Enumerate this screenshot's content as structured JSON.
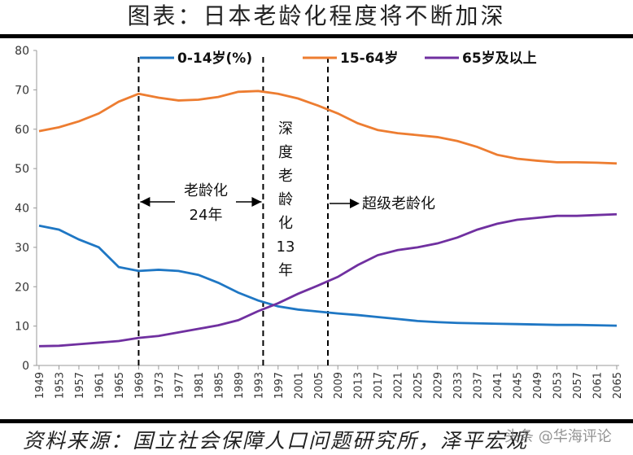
{
  "title": "图表：日本老龄化程度将不断加深",
  "source": "资料来源：国立社会保障人口问题研究所，泽平宏观",
  "watermark": "头条 @华海评论",
  "chart_data": {
    "type": "line",
    "ylim": [
      0,
      80
    ],
    "yticks": [
      0,
      10,
      20,
      30,
      40,
      50,
      60,
      70,
      80
    ],
    "xlim": [
      1949,
      2065
    ],
    "xticks": [
      1949,
      1953,
      1957,
      1961,
      1965,
      1969,
      1973,
      1977,
      1981,
      1985,
      1989,
      1993,
      1997,
      2001,
      2005,
      2009,
      2013,
      2017,
      2021,
      2025,
      2029,
      2033,
      2037,
      2041,
      2045,
      2049,
      2053,
      2057,
      2061,
      2065
    ],
    "x": [
      1949,
      1953,
      1957,
      1961,
      1965,
      1969,
      1973,
      1977,
      1981,
      1985,
      1989,
      1993,
      1997,
      2001,
      2005,
      2009,
      2013,
      2017,
      2021,
      2025,
      2029,
      2033,
      2037,
      2041,
      2045,
      2049,
      2053,
      2057,
      2061,
      2065
    ],
    "series": [
      {
        "name": "0-14岁(%)",
        "color": "#1f77c4",
        "values": [
          35.5,
          34.5,
          32,
          30,
          25,
          24,
          24.3,
          24,
          23,
          21,
          18.5,
          16.5,
          15,
          14.2,
          13.7,
          13.2,
          12.8,
          12.3,
          11.8,
          11.3,
          11,
          10.8,
          10.7,
          10.6,
          10.5,
          10.4,
          10.3,
          10.3,
          10.2,
          10.1
        ]
      },
      {
        "name": "15-64岁",
        "color": "#ed7d31",
        "values": [
          59.5,
          60.5,
          62,
          64,
          67,
          69,
          68,
          67.3,
          67.5,
          68.2,
          69.5,
          69.7,
          69,
          67.8,
          66,
          64,
          61.5,
          59.8,
          59,
          58.5,
          58,
          57,
          55.5,
          53.5,
          52.5,
          52,
          51.6,
          51.6,
          51.5,
          51.3
        ]
      },
      {
        "name": "65岁及以上",
        "color": "#7030a0",
        "values": [
          4.9,
          5,
          5.4,
          5.8,
          6.2,
          7,
          7.5,
          8.4,
          9.3,
          10.2,
          11.5,
          13.8,
          15.8,
          18.2,
          20.3,
          22.5,
          25.5,
          28,
          29.3,
          30,
          31,
          32.5,
          34.5,
          36,
          37,
          37.5,
          38,
          38,
          38.2,
          38.4
        ]
      }
    ],
    "vlines": [
      1969,
      1994,
      2007
    ],
    "annotations": {
      "aging_label": "老龄化",
      "aging_years": "24年",
      "deep_chars": [
        "深",
        "度",
        "老",
        "龄",
        "化",
        "13",
        "年"
      ],
      "super_label": "超级老龄化"
    },
    "legend": "top"
  }
}
